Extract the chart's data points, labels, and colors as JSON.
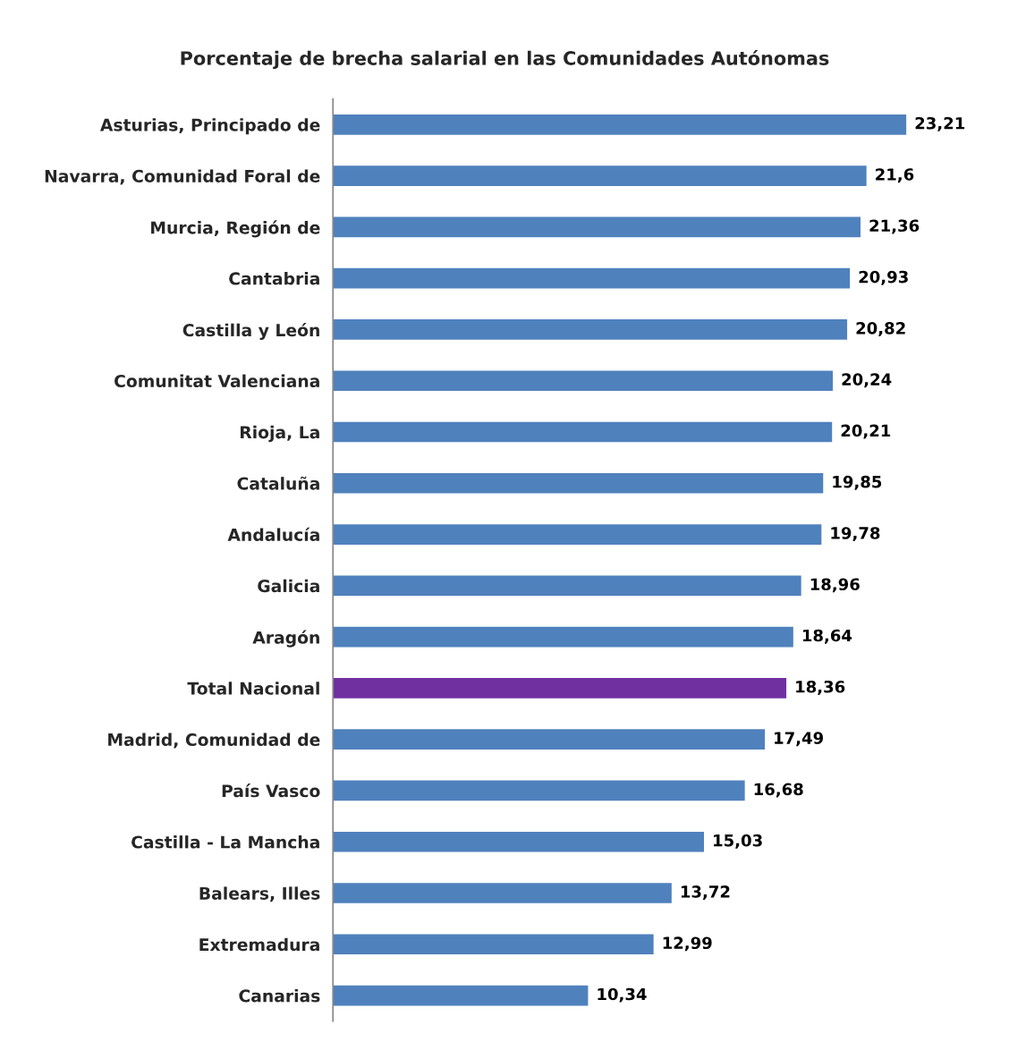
{
  "chart_data": {
    "type": "bar",
    "orientation": "horizontal",
    "title": "Porcentaje de brecha salarial en las Comunidades Autónomas",
    "categories": [
      "Asturias, Principado de",
      "Navarra, Comunidad Foral de",
      "Murcia, Región de",
      "Cantabria",
      "Castilla y León",
      "Comunitat Valenciana",
      "Rioja, La",
      "Cataluña",
      "Andalucía",
      "Galicia",
      "Aragón",
      "Total Nacional",
      "Madrid, Comunidad de",
      "País Vasco",
      "Castilla - La Mancha",
      "Balears, Illes",
      "Extremadura",
      "Canarias"
    ],
    "values": [
      23.21,
      21.6,
      21.36,
      20.93,
      20.82,
      20.24,
      20.21,
      19.85,
      19.78,
      18.96,
      18.64,
      18.36,
      17.49,
      16.68,
      15.03,
      13.72,
      12.99,
      10.34
    ],
    "value_labels": [
      "23,21",
      "21,6",
      "21,36",
      "20,93",
      "20,82",
      "20,24",
      "20,21",
      "19,85",
      "19,78",
      "18,96",
      "18,64",
      "18,36",
      "17,49",
      "16,68",
      "15,03",
      "13,72",
      "12,99",
      "10,34"
    ],
    "colors": [
      "#4f81bd",
      "#4f81bd",
      "#4f81bd",
      "#4f81bd",
      "#4f81bd",
      "#4f81bd",
      "#4f81bd",
      "#4f81bd",
      "#4f81bd",
      "#4f81bd",
      "#4f81bd",
      "#7030a0",
      "#4f81bd",
      "#4f81bd",
      "#4f81bd",
      "#4f81bd",
      "#4f81bd",
      "#4f81bd"
    ],
    "grid": false,
    "legend": false,
    "tick_labels": "y"
  }
}
